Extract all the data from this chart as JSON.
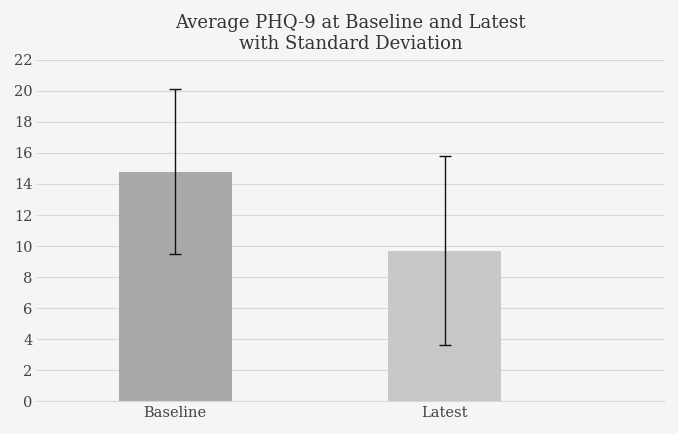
{
  "categories": [
    "Baseline",
    "Latest"
  ],
  "values": [
    14.8,
    9.7
  ],
  "errors_up": [
    5.3,
    6.1
  ],
  "errors_down": [
    5.3,
    6.1
  ],
  "bar_colors": [
    "#a9a9a9",
    "#c8c8c8"
  ],
  "bar_edge_colors": [
    "none",
    "none"
  ],
  "title_line1": "Average PHQ-9 at Baseline and Latest",
  "title_line2": "with Standard Deviation",
  "ylim": [
    0,
    22
  ],
  "yticks": [
    0,
    2,
    4,
    6,
    8,
    10,
    12,
    14,
    16,
    18,
    20,
    22
  ],
  "bar_width": 0.18,
  "x_positions": [
    0.22,
    0.65
  ],
  "xlim": [
    0,
    1.0
  ],
  "background_color": "#f5f5f5",
  "grid_color": "#d8d8d8",
  "title_fontsize": 13,
  "tick_fontsize": 10.5,
  "error_capsize": 4,
  "error_color": "#111111",
  "error_linewidth": 1.0
}
